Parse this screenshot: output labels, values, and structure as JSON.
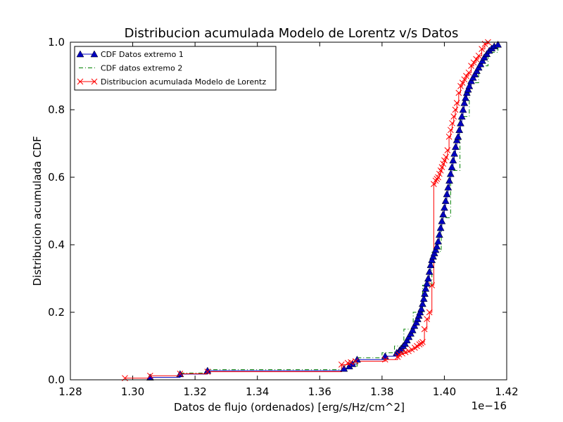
{
  "chart_data": {
    "type": "line",
    "title": "Distribucion acumulada Modelo de Lorentz v/s Datos",
    "xlabel": "Datos de flujo (ordenados) [erg/s/Hz/cm^2]",
    "ylabel": "Distribucion acumulada CDF",
    "x_offset_label": "1e−16",
    "xlim": [
      1.28,
      1.42
    ],
    "ylim": [
      0.0,
      1.0
    ],
    "x_ticks": [
      1.28,
      1.3,
      1.32,
      1.34,
      1.36,
      1.38,
      1.4,
      1.42
    ],
    "x_tick_labels": [
      "1.28",
      "1.30",
      "1.32",
      "1.34",
      "1.36",
      "1.38",
      "1.40",
      "1.42"
    ],
    "y_ticks": [
      0.0,
      0.2,
      0.4,
      0.6,
      0.8,
      1.0
    ],
    "y_tick_labels": [
      "0.0",
      "0.2",
      "0.4",
      "0.6",
      "0.8",
      "1.0"
    ],
    "grid": false,
    "legend_position": "top-left",
    "series": [
      {
        "name": "CDF Datos extremo 1",
        "color": "#0000bf",
        "style": "solid-step-triangle",
        "x": [
          1.3056,
          1.3152,
          1.324,
          1.3678,
          1.3695,
          1.3705,
          1.372,
          1.381,
          1.3847,
          1.3856,
          1.3862,
          1.3868,
          1.3874,
          1.388,
          1.3886,
          1.3892,
          1.3898,
          1.3904,
          1.391,
          1.3914,
          1.3918,
          1.3922,
          1.3926,
          1.393,
          1.3934,
          1.3937,
          1.394,
          1.3944,
          1.3948,
          1.3952,
          1.3956,
          1.396,
          1.3964,
          1.3968,
          1.3972,
          1.3976,
          1.398,
          1.3984,
          1.3988,
          1.3992,
          1.3996,
          1.4,
          1.4004,
          1.4008,
          1.4012,
          1.4016,
          1.402,
          1.4024,
          1.4028,
          1.4032,
          1.4036,
          1.404,
          1.4044,
          1.4048,
          1.4052,
          1.4056,
          1.406,
          1.4064,
          1.4068,
          1.4072,
          1.4076,
          1.408,
          1.4086,
          1.4092,
          1.4098,
          1.4104,
          1.411,
          1.4116,
          1.4122,
          1.4128,
          1.4136,
          1.4144,
          1.4152,
          1.416,
          1.4172
        ],
        "y": [
          0.007,
          0.017,
          0.027,
          0.033,
          0.04,
          0.047,
          0.06,
          0.07,
          0.08,
          0.087,
          0.093,
          0.1,
          0.107,
          0.117,
          0.127,
          0.137,
          0.147,
          0.16,
          0.17,
          0.18,
          0.19,
          0.2,
          0.21,
          0.225,
          0.24,
          0.255,
          0.27,
          0.285,
          0.3,
          0.32,
          0.34,
          0.355,
          0.365,
          0.375,
          0.385,
          0.395,
          0.41,
          0.43,
          0.45,
          0.47,
          0.49,
          0.51,
          0.53,
          0.55,
          0.57,
          0.59,
          0.61,
          0.63,
          0.65,
          0.67,
          0.69,
          0.71,
          0.72,
          0.74,
          0.76,
          0.78,
          0.8,
          0.82,
          0.835,
          0.85,
          0.86,
          0.87,
          0.885,
          0.895,
          0.905,
          0.915,
          0.925,
          0.935,
          0.945,
          0.955,
          0.965,
          0.975,
          0.982,
          0.988,
          0.993
        ]
      },
      {
        "name": "CDF datos extremo 2",
        "color": "#008000",
        "style": "dashdot-step",
        "x": [
          1.3152,
          1.324,
          1.3678,
          1.372,
          1.38,
          1.384,
          1.387,
          1.39,
          1.393,
          1.396,
          1.399,
          1.402,
          1.405,
          1.408,
          1.411,
          1.414,
          1.4172
        ],
        "y": [
          0.02,
          0.03,
          0.04,
          0.065,
          0.08,
          0.1,
          0.15,
          0.2,
          0.28,
          0.38,
          0.48,
          0.62,
          0.78,
          0.88,
          0.93,
          0.97,
          0.993
        ]
      },
      {
        "name": "Distribucion acumulada Modelo de Lorentz",
        "color": "#ff0000",
        "style": "solid-step-x",
        "x": [
          1.2975,
          1.3056,
          1.3152,
          1.324,
          1.367,
          1.369,
          1.37,
          1.3715,
          1.381,
          1.385,
          1.3855,
          1.3865,
          1.3875,
          1.3885,
          1.3895,
          1.3905,
          1.3912,
          1.392,
          1.3925,
          1.393,
          1.3936,
          1.3944,
          1.3952,
          1.396,
          1.3966,
          1.3972,
          1.3976,
          1.398,
          1.3984,
          1.3988,
          1.3992,
          1.3996,
          1.4,
          1.4005,
          1.401,
          1.4015,
          1.402,
          1.4025,
          1.403,
          1.4035,
          1.404,
          1.4046,
          1.4052,
          1.4058,
          1.4064,
          1.407,
          1.4078,
          1.4086,
          1.4094,
          1.4102,
          1.411,
          1.412,
          1.413,
          1.414
        ],
        "y": [
          0.005,
          0.012,
          0.018,
          0.024,
          0.045,
          0.05,
          0.052,
          0.055,
          0.06,
          0.068,
          0.075,
          0.078,
          0.082,
          0.085,
          0.09,
          0.095,
          0.1,
          0.105,
          0.108,
          0.112,
          0.15,
          0.18,
          0.2,
          0.28,
          0.58,
          0.59,
          0.595,
          0.6,
          0.61,
          0.62,
          0.63,
          0.64,
          0.65,
          0.66,
          0.68,
          0.72,
          0.74,
          0.76,
          0.78,
          0.8,
          0.82,
          0.85,
          0.87,
          0.88,
          0.89,
          0.9,
          0.91,
          0.93,
          0.94,
          0.95,
          0.96,
          0.98,
          0.995,
          1.0
        ]
      }
    ]
  }
}
